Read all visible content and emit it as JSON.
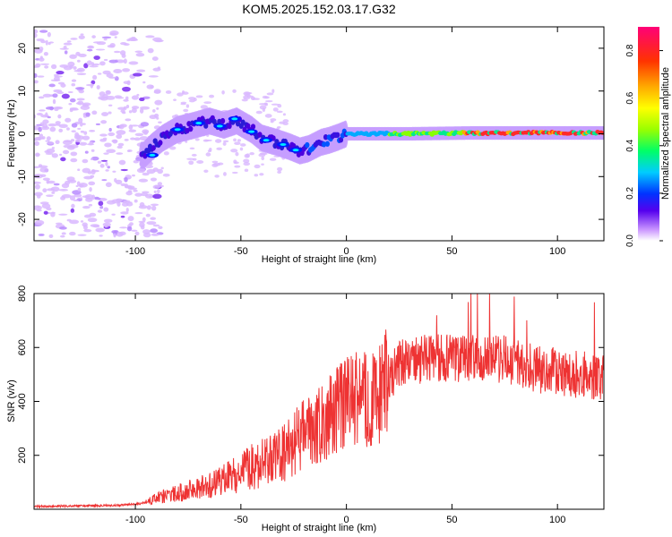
{
  "title": "KOM5.2025.152.03.17.G32",
  "colorbar": {
    "label": "Normalized spectral amplitude",
    "ticks": [
      "0.0",
      "0.2",
      "0.4",
      "0.6",
      "0.8"
    ],
    "range": [
      0,
      0.9
    ]
  },
  "chart_data": [
    {
      "type": "heatmap",
      "xlabel": "Height of straight line (km)",
      "ylabel": "Frequency (Hz)",
      "xlim": [
        -148,
        122
      ],
      "ylim": [
        -25,
        25
      ],
      "xticks": [
        "-100",
        "-50",
        "0",
        "50",
        "100"
      ],
      "yticks": [
        "20",
        "10",
        "0",
        "-10",
        "-20"
      ],
      "ridge": {
        "x": [
          -96,
          -92,
          -87,
          -80,
          -72,
          -65,
          -58,
          -52,
          -45,
          -40,
          -33,
          -27,
          -22,
          -18,
          -12,
          -8,
          -4,
          0,
          10,
          30,
          60,
          90,
          122
        ],
        "freq": [
          -5,
          -3,
          -1,
          1,
          2,
          3,
          2,
          3,
          1,
          -1,
          -2,
          -3,
          -4,
          -3.5,
          -2,
          -1.5,
          -0.8,
          0,
          0,
          0,
          0.2,
          0.2,
          0.2
        ]
      },
      "amplitude_levels": [
        0.05,
        0.15,
        0.3,
        0.5,
        0.75,
        0.9
      ]
    },
    {
      "type": "line",
      "xlabel": "Height of straight line (km)",
      "ylabel": "SNR (v/v)",
      "xlim": [
        -148,
        122
      ],
      "ylim": [
        0,
        800
      ],
      "xticks": [
        "-100",
        "-50",
        "0",
        "50",
        "100"
      ],
      "yticks": [
        "800",
        "600",
        "400",
        "200"
      ],
      "series": [
        {
          "color": "#ee3333",
          "x": [
            -148,
            -130,
            -110,
            -100,
            -95,
            -90,
            -85,
            -80,
            -75,
            -70,
            -65,
            -60,
            -55,
            -50,
            -45,
            -40,
            -35,
            -30,
            -25,
            -20,
            -15,
            -10,
            -5,
            0,
            5,
            10,
            15,
            20,
            25,
            30,
            40,
            50,
            60,
            70,
            80,
            90,
            100,
            110,
            122
          ],
          "y": [
            10,
            12,
            14,
            18,
            25,
            40,
            50,
            60,
            70,
            80,
            90,
            100,
            120,
            140,
            160,
            170,
            185,
            200,
            240,
            280,
            300,
            330,
            360,
            390,
            420,
            400,
            420,
            480,
            540,
            550,
            560,
            560,
            560,
            560,
            550,
            520,
            510,
            500,
            490
          ]
        }
      ]
    }
  ]
}
